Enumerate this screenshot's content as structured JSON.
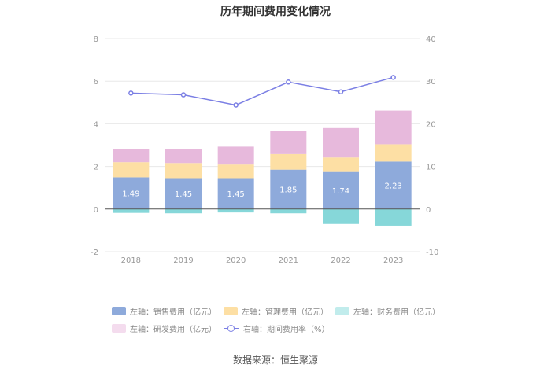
{
  "title": "历年期间费用变化情况",
  "source": "数据来源：恒生聚源",
  "chart_data": {
    "type": "bar",
    "stacked": true,
    "title": "历年期间费用变化情况",
    "categories": [
      "2018",
      "2019",
      "2020",
      "2021",
      "2022",
      "2023"
    ],
    "left_axis": {
      "ylim": [
        -2,
        8
      ],
      "ticks": [
        "-2",
        "0",
        "2",
        "4",
        "6",
        "8"
      ]
    },
    "right_axis": {
      "ylim": [
        -10,
        40
      ],
      "ticks": [
        "-10",
        "0",
        "10",
        "20",
        "30",
        "40"
      ]
    },
    "series": [
      {
        "name": "左轴：销售费用（亿元）",
        "axis": "left",
        "kind": "bar",
        "color": "#8eaadb",
        "values": [
          1.49,
          1.45,
          1.45,
          1.85,
          1.74,
          2.23
        ],
        "labels": [
          "1.49",
          "1.45",
          "1.45",
          "1.85",
          "1.74",
          "2.23"
        ]
      },
      {
        "name": "左轴：管理费用（亿元）",
        "axis": "left",
        "kind": "bar",
        "color": "#fddfa4",
        "values": [
          0.71,
          0.71,
          0.64,
          0.73,
          0.68,
          0.81
        ]
      },
      {
        "name": "左轴：财务费用（亿元）",
        "axis": "left",
        "kind": "bar",
        "color": "#86d7d9",
        "values": [
          -0.18,
          -0.2,
          -0.16,
          -0.2,
          -0.7,
          -0.78
        ]
      },
      {
        "name": "左轴：研发费用（亿元）",
        "axis": "left",
        "kind": "bar",
        "color": "#e7b9dc",
        "values": [
          0.6,
          0.67,
          0.84,
          1.08,
          1.38,
          1.58
        ]
      },
      {
        "name": "右轴：期间费用率（%）",
        "axis": "right",
        "kind": "line",
        "color": "#7b7fe4",
        "values": [
          27.2,
          26.8,
          24.4,
          29.8,
          27.5,
          30.9
        ]
      }
    ]
  }
}
